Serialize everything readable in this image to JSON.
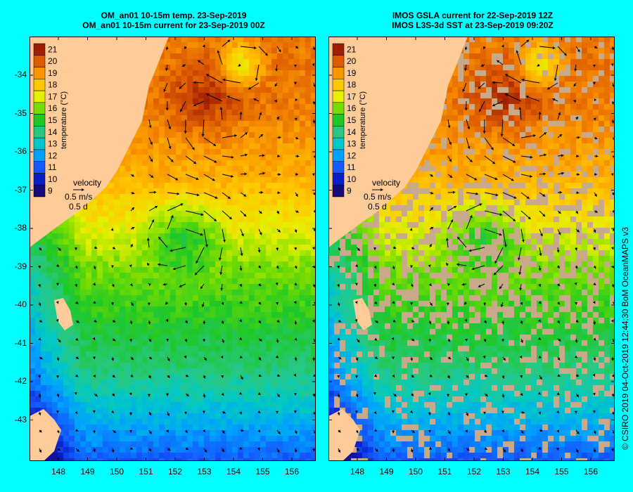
{
  "panels": [
    {
      "id": "left",
      "title_line1": "OM_an01 10-15m temp. 23-Sep-2019",
      "title_line2": "OM_an01 10-15m current for 23-Sep-2019 00Z",
      "colorbar_label": "temperature (°C)",
      "velocity": {
        "label": "velocity",
        "speed": "0.5 m/s",
        "duration": "0.5 d"
      },
      "gaps": false
    },
    {
      "id": "right",
      "title_line1": "IMOS GSLA current for 22-Sep-2019 12Z",
      "title_line2": "IMOS L3S-3d SST at 23-Sep-2019 09:20Z",
      "colorbar_label": "temperature (°C)",
      "velocity": {
        "label": "velocity",
        "speed": "0.5 m/s",
        "duration": "0.5 d"
      },
      "gaps": true
    }
  ],
  "colorbar_ticks": [
    "21",
    "20",
    "19",
    "18",
    "17",
    "16",
    "15",
    "14",
    "13",
    "12",
    "11",
    "10",
    "9"
  ],
  "lat_ticks": [
    "-34",
    "-35",
    "-36",
    "-37",
    "-38",
    "-39",
    "-40",
    "-41",
    "-42",
    "-43"
  ],
  "lon_ticks": [
    "148",
    "149",
    "150",
    "151",
    "152",
    "153",
    "154",
    "155",
    "156"
  ],
  "copyright": "© CSIRO 2019   04-Oct-2019 12:44:30 BoM OceanMAPS v3",
  "colors": {
    "land": "#ffcc99",
    "gap": "#c8aa8a",
    "background": "#00ffff"
  }
}
